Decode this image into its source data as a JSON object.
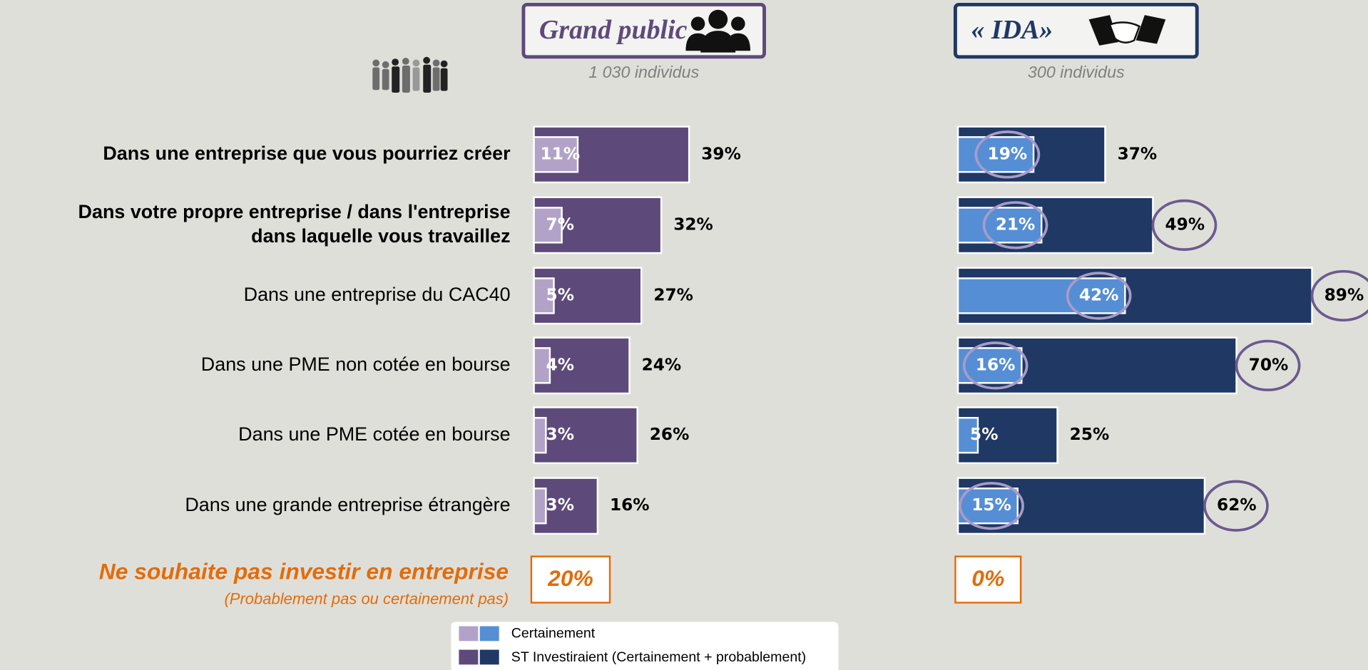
{
  "chart_data": {
    "type": "bar",
    "orientation": "horizontal",
    "xlim": [
      0,
      100
    ],
    "categories": [
      [
        "Dans une entreprise que vous pourriez créer"
      ],
      [
        "Dans votre propre entreprise / dans l'entreprise",
        "dans laquelle vous travaillez"
      ],
      [
        "Dans une entreprise du CAC40"
      ],
      [
        "Dans une PME non cotée en bourse"
      ],
      [
        "Dans une PME cotée en bourse"
      ],
      [
        "Dans une grande entreprise étrangère"
      ]
    ],
    "category_bold": [
      true,
      true,
      false,
      false,
      false,
      false
    ],
    "legend": [
      "Certainement",
      "ST Investiraient (Certainement + probablement)"
    ],
    "no_invest": {
      "label": "Ne souhaite pas investir en entreprise",
      "sublabel": "(Probablement pas ou certainement pas)",
      "color": "#e36c09"
    },
    "panels": [
      {
        "title": "Grand public",
        "subtitle": "1 030 individus",
        "color": "#5e4a7a",
        "series": [
          {
            "color": "#b3a2c8",
            "values": [
              11,
              7,
              5,
              4,
              3,
              3
            ],
            "value_labels": [
              "11%",
              "7%",
              "5%",
              "4%",
              "3%",
              "3%"
            ],
            "circled": [
              false,
              false,
              false,
              false,
              false,
              false
            ]
          },
          {
            "color": "#5e4a7a",
            "values": [
              39,
              32,
              27,
              24,
              26,
              16
            ],
            "value_labels": [
              "39%",
              "32%",
              "27%",
              "24%",
              "26%",
              "16%"
            ],
            "circled": [
              false,
              false,
              false,
              false,
              false,
              false
            ]
          }
        ],
        "no_invest": {
          "value": 20,
          "value_label": "20%"
        }
      },
      {
        "title": "« IDA»",
        "subtitle": "300 individus",
        "color": "#1f3864",
        "series": [
          {
            "color": "#558ed5",
            "values": [
              19,
              21,
              42,
              16,
              5,
              15
            ],
            "value_labels": [
              "19%",
              "21%",
              "42%",
              "16%",
              "5%",
              "15%"
            ],
            "circled": [
              true,
              true,
              true,
              true,
              false,
              true
            ]
          },
          {
            "color": "#1f3864",
            "values": [
              37,
              49,
              89,
              70,
              25,
              62
            ],
            "value_labels": [
              "37%",
              "49%",
              "89%",
              "70%",
              "25%",
              "62%"
            ],
            "circled": [
              false,
              true,
              true,
              true,
              false,
              true
            ]
          }
        ],
        "no_invest": {
          "value": 0,
          "value_label": "0%"
        }
      }
    ]
  }
}
